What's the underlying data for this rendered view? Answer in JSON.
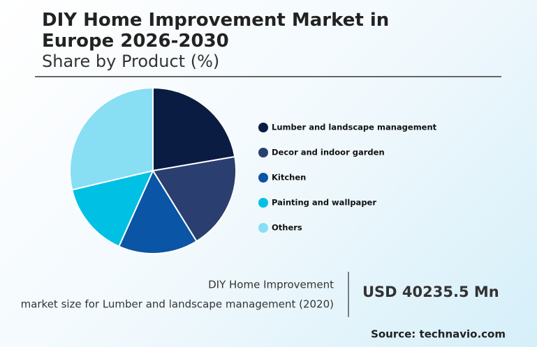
{
  "chart_data": {
    "type": "pie",
    "title": "DIY Home Improvement Market in Europe 2026-2030",
    "subtitle": "Share by Product (%)",
    "categories": [
      "Lumber and landscape management",
      "Decor and indoor garden",
      "Kitchen",
      "Painting and wallpaper",
      "Others"
    ],
    "values": [
      22.3,
      18.9,
      15.5,
      14.6,
      28.7
    ],
    "colors": [
      "#0a1c42",
      "#2a3f70",
      "#0a55a6",
      "#00c1e4",
      "#88def3"
    ]
  },
  "footer": {
    "label_lines": [
      "DIY Home Improvement",
      "market size for Lumber and landscape management (2020)"
    ],
    "value": "USD 40235.5 Mn",
    "source": "Source: technavio.com"
  }
}
